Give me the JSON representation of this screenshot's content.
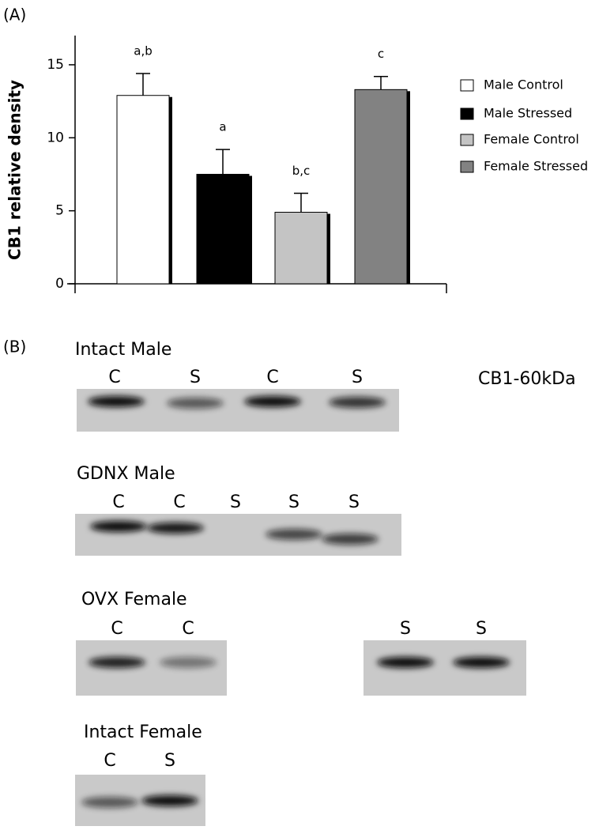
{
  "panel_a_label": "(A)",
  "chart_data": {
    "type": "bar",
    "y_label": "CB1 relative density",
    "categories": [
      "Male Control",
      "Male Stressed",
      "Female Control",
      "Female Stressed"
    ],
    "values": [
      12.9,
      7.5,
      4.9,
      13.3
    ],
    "errors": [
      1.5,
      1.7,
      1.3,
      0.9
    ],
    "annotations": [
      "a,b",
      "a",
      "b,c",
      "c"
    ],
    "colors": [
      "#ffffff",
      "#000000",
      "#c4c4c4",
      "#828282"
    ],
    "ylim": [
      0,
      17
    ],
    "yticks": [
      0,
      5,
      10,
      15
    ]
  },
  "panel_b": {
    "label": "(B)",
    "marker": "CB1-60kDa",
    "blots": [
      {
        "title": "Intact Male",
        "lanes": [
          "C",
          "S",
          "C",
          "S"
        ]
      },
      {
        "title": "GDNX Male",
        "lanes": [
          "C",
          "C",
          "S",
          "S",
          "S"
        ]
      },
      {
        "title": "OVX Female",
        "lanes": [
          "C",
          "C",
          "S",
          "S"
        ]
      },
      {
        "title": "Intact Female",
        "lanes": [
          "C",
          "S"
        ]
      }
    ]
  }
}
